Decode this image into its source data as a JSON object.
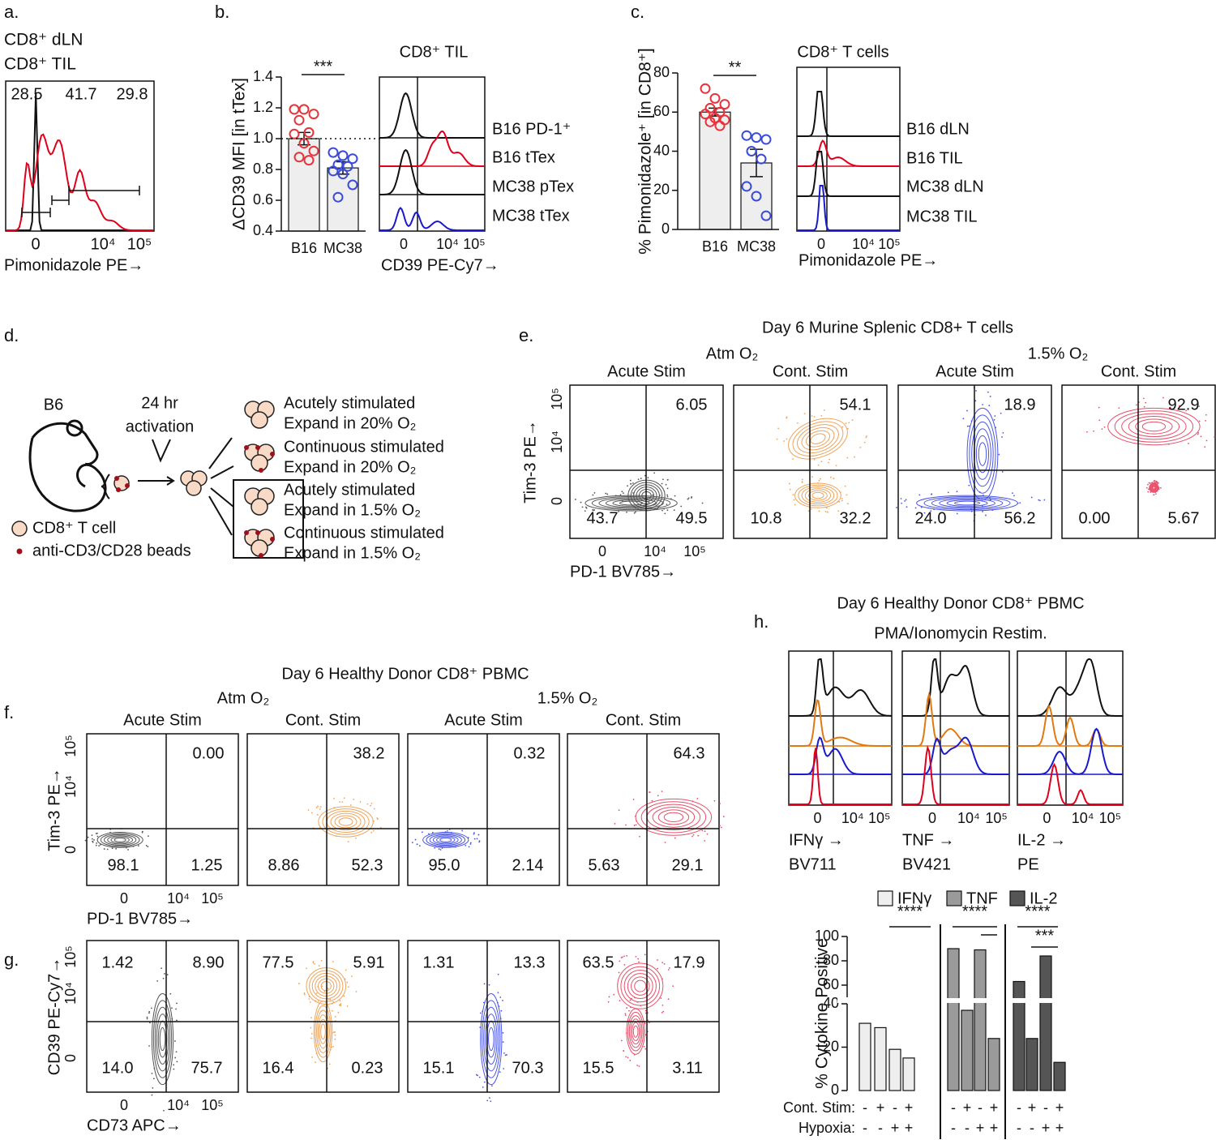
{
  "figure": {
    "a": {
      "label": "a.",
      "legend": [
        {
          "text": "CD8⁺ dLN",
          "color": "#111111"
        },
        {
          "text": "CD8⁺ TIL",
          "color": "#e0001b"
        }
      ],
      "gates": [
        "28.5",
        "41.7",
        "29.8"
      ],
      "xticks": [
        "0",
        "10⁴",
        "10⁵"
      ],
      "xlabel": "Pimonidazole PE→"
    },
    "b": {
      "label": "b.",
      "histogram": {
        "title": "CD8⁺ TIL",
        "tracks": [
          {
            "name": "B16 PD-1⁺",
            "color": "#111111"
          },
          {
            "name": "B16 tTex",
            "color": "#e0001b"
          },
          {
            "name": "MC38 pTex",
            "color": "#111111"
          },
          {
            "name": "MC38 tTex",
            "color": "#1a1acc"
          }
        ],
        "xticks": [
          "0",
          "10⁴",
          "10⁵"
        ],
        "xlabel": "CD39 PE-Cy7→"
      }
    },
    "c": {
      "label": "c.",
      "histogram": {
        "title": "CD8⁺ T cells",
        "tracks": [
          {
            "name": "B16 dLN",
            "color": "#111111"
          },
          {
            "name": "B16 TIL",
            "color": "#e0001b"
          },
          {
            "name": "MC38 dLN",
            "color": "#111111"
          },
          {
            "name": "MC38 TIL",
            "color": "#1a1acc"
          }
        ],
        "xticks": [
          "0",
          "10⁴",
          "10⁵"
        ],
        "xlabel": "Pimonidazole PE→"
      }
    },
    "d": {
      "label": "d.",
      "mouse": "B6",
      "step": [
        "24 hr",
        "activation"
      ],
      "outcomes": [
        [
          "Acutely stimulated",
          "Expand in 20% O₂"
        ],
        [
          "Continuous stimulated",
          "Expand in 20% O₂"
        ],
        [
          "Acutely stimulated",
          "Expand in 1.5% O₂"
        ],
        [
          "Continuous stimulated",
          "Expand in 1.5% O₂"
        ]
      ],
      "legend": [
        "CD8⁺ T cell",
        "anti-CD3/CD28 beads"
      ]
    },
    "e": {
      "label": "e.",
      "title": "Day 6 Murine Splenic CD8+ T cells",
      "groups": [
        "Atm O₂",
        "1.5% O₂"
      ],
      "plots": [
        {
          "title": "Acute Stim",
          "color": "#555555",
          "quadrants": [
            "6.05",
            "43.7",
            "49.5"
          ]
        },
        {
          "title": "Cont. Stim",
          "color": "#eea45c",
          "quadrants": [
            "54.1",
            "10.8",
            "32.2"
          ]
        },
        {
          "title": "Acute Stim",
          "color": "#4a55e8",
          "quadrants": [
            "18.9",
            "24.0",
            "56.2"
          ]
        },
        {
          "title": "Cont. Stim",
          "color": "#e8506a",
          "quadrants": [
            "92.9",
            "0.00",
            "5.67"
          ]
        }
      ],
      "ylabel": "Tim-3 PE→",
      "yticks": [
        "0",
        "10⁴",
        "10⁵"
      ],
      "xlabel": "PD-1 BV785→",
      "xticks": [
        "0",
        "10⁴",
        "10⁵"
      ]
    },
    "f": {
      "label": "f.",
      "title": "Day 6 Healthy Donor CD8⁺ PBMC",
      "groups": [
        "Atm O₂",
        "1.5% O₂"
      ],
      "plots": [
        {
          "title": "Acute Stim",
          "color": "#555555",
          "quadrants": [
            "0.00",
            "98.1",
            "1.25"
          ]
        },
        {
          "title": "Cont. Stim",
          "color": "#eea45c",
          "quadrants": [
            "38.2",
            "8.86",
            "52.3"
          ]
        },
        {
          "title": "Acute Stim",
          "color": "#4a55e8",
          "quadrants": [
            "0.32",
            "95.0",
            "2.14"
          ]
        },
        {
          "title": "Cont. Stim",
          "color": "#e8506a",
          "quadrants": [
            "64.3",
            "5.63",
            "29.1"
          ]
        }
      ],
      "ylabel": "Tim-3 PE→",
      "yticks": [
        "0",
        "10⁴",
        "10⁵"
      ],
      "xlabel": "PD-1 BV785→",
      "xticks": [
        "0",
        "10⁴",
        "10⁵"
      ]
    },
    "g": {
      "label": "g.",
      "plots": [
        {
          "color": "#555555",
          "quadrants": [
            "1.42",
            "8.90",
            "14.0",
            "75.7"
          ]
        },
        {
          "color": "#eea45c",
          "quadrants": [
            "77.5",
            "5.91",
            "16.4",
            "0.23"
          ]
        },
        {
          "color": "#4a55e8",
          "quadrants": [
            "1.31",
            "13.3",
            "15.1",
            "70.3"
          ]
        },
        {
          "color": "#e8506a",
          "quadrants": [
            "63.5",
            "17.9",
            "15.5",
            "3.11"
          ]
        }
      ],
      "ylabel": "CD39 PE-Cy7→",
      "yticks": [
        "0",
        "10⁴",
        "10⁵"
      ],
      "xlabel": "CD73 APC→",
      "xticks": [
        "0",
        "10⁴",
        "10⁵"
      ]
    },
    "h": {
      "label": "h.",
      "title": "Day 6 Healthy Donor CD8⁺ PBMC",
      "subtitle": "PMA/Ionomycin Restim.",
      "track_colors": [
        "#111111",
        "#e07a10",
        "#1a1acc",
        "#e0001b"
      ],
      "histograms": [
        {
          "xlabel": [
            "IFNγ →",
            "BV711"
          ]
        },
        {
          "xlabel": [
            "TNF →",
            "BV421"
          ]
        },
        {
          "xlabel": [
            "IL-2 →",
            "PE"
          ]
        }
      ],
      "xticks": [
        "0",
        "10⁴",
        "10⁵"
      ]
    }
  },
  "chart_data": [
    {
      "type": "bar",
      "ylabel": "ΔCD39 MFI [in tTex]",
      "categories": [
        "B16",
        "MC38"
      ],
      "values": [
        1.0,
        0.81
      ],
      "errors": [
        0.04,
        0.04
      ],
      "points": [
        [
          1.19,
          1.19,
          1.16,
          1.12,
          1.04,
          1.03,
          0.97,
          0.92,
          0.88,
          0.86
        ],
        [
          0.91,
          0.89,
          0.87,
          0.83,
          0.82,
          0.79,
          0.77,
          0.7,
          0.62
        ]
      ],
      "bar_color": "#eeeeee",
      "point_colors": [
        "#e8333a",
        "#3b4bd9"
      ],
      "ylim": [
        0.4,
        1.4
      ],
      "yticks": [
        0.4,
        0.6,
        0.8,
        {
          "value": 1.0,
          "label": "1.0"
        },
        1.2,
        1.4
      ],
      "reference_line": 1.0,
      "significance": "***"
    },
    {
      "type": "bar",
      "ylabel": "% Pimonidazole⁺ [in CD8⁺]",
      "categories": [
        "B16",
        "MC38"
      ],
      "values": [
        60,
        34
      ],
      "errors": [
        2,
        7
      ],
      "points": [
        [
          72,
          67,
          64,
          62,
          60,
          59,
          57,
          56,
          55,
          53
        ],
        [
          48,
          47,
          46,
          40,
          36,
          22,
          17,
          7
        ]
      ],
      "bar_color": "#eeeeee",
      "point_colors": [
        "#e8333a",
        "#3b4bd9"
      ],
      "ylim": [
        0,
        80
      ],
      "yticks": [
        0,
        20,
        40,
        60,
        80
      ],
      "significance": "**"
    },
    {
      "type": "bar",
      "ylabel": "% Cytokine Positive",
      "series": [
        {
          "name": "IFNγ",
          "color": "#eeeeee",
          "values": [
            31,
            29,
            19,
            15
          ]
        },
        {
          "name": "TNF",
          "color": "#9a9a9a",
          "values": [
            90,
            37,
            89,
            24
          ]
        },
        {
          "name": "IL-2",
          "color": "#555555",
          "values": [
            63,
            24,
            84,
            13
          ]
        }
      ],
      "ylim": [
        0,
        100
      ],
      "ybreak": [
        40,
        50
      ],
      "yticks": [
        0,
        20,
        40,
        60,
        80,
        100
      ],
      "significance": [
        "****",
        "****",
        "****",
        "***"
      ],
      "conditions": {
        "labels": [
          "Cont. Stim:",
          "Hypoxia:"
        ],
        "values": [
          [
            "-",
            "+",
            "-",
            "+"
          ],
          [
            "-",
            "-",
            "+",
            "+"
          ]
        ]
      }
    }
  ]
}
